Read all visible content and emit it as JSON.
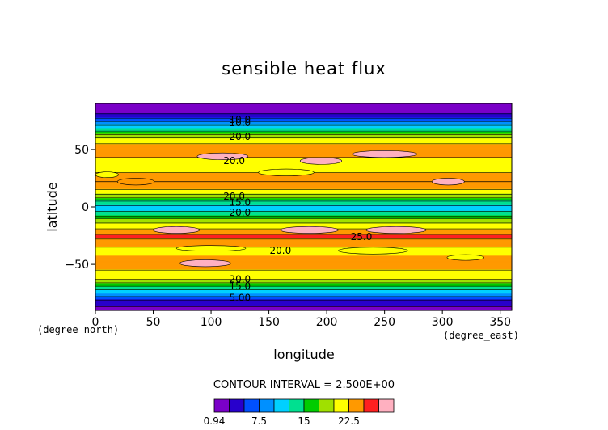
{
  "chart_data": {
    "type": "heatmap",
    "title": "sensible heat flux",
    "xlabel": "longitude",
    "ylabel": "latitude",
    "x_unit": "(degree_east)",
    "y_unit": "(degree_north)",
    "xlim": [
      0,
      360
    ],
    "ylim": [
      -90,
      90
    ],
    "x_ticks": [
      0,
      50,
      100,
      150,
      200,
      250,
      300,
      350
    ],
    "y_ticks": [
      50,
      0,
      -50
    ],
    "contour_interval_text": "CONTOUR INTERVAL = 2.500E+00",
    "colorbar": {
      "tick_labels": [
        "0.94",
        "7.5",
        "15",
        "22.5"
      ],
      "tick_values": [
        0.94,
        7.5,
        15,
        22.5
      ],
      "levels": [
        0.94,
        2.5,
        5,
        7.5,
        10,
        12.5,
        15,
        17.5,
        20,
        22.5,
        25,
        27.5
      ],
      "colors": [
        "#7a00c8",
        "#2800cc",
        "#0050ff",
        "#0090ff",
        "#00d0ff",
        "#00e090",
        "#00cc00",
        "#a0e000",
        "#ffff00",
        "#ff9900",
        "#ff2020",
        "#ffb0c0"
      ]
    },
    "zonal_profile": {
      "lat": [
        -90,
        -85,
        -80,
        -77,
        -74,
        -71,
        -68,
        -65,
        -62,
        -58,
        -54,
        -50,
        -46,
        -42,
        -38,
        -34,
        -30,
        -26,
        -22,
        -18,
        -14,
        -10,
        -6,
        -2,
        2,
        6,
        10,
        14,
        18,
        22,
        26,
        30,
        34,
        38,
        42,
        46,
        50,
        54,
        58,
        62,
        65,
        68,
        71,
        74,
        77,
        80,
        85,
        90
      ],
      "value": [
        0.94,
        3,
        5,
        8,
        10.5,
        13,
        15.5,
        18,
        20.5,
        22,
        22.5,
        23,
        23.5,
        22.5,
        21.5,
        22.5,
        23.5,
        25.5,
        24.5,
        22,
        20,
        17.5,
        13.5,
        12,
        12.5,
        15,
        19,
        21.5,
        23.5,
        25,
        24,
        22.5,
        21,
        20.5,
        22,
        23.5,
        24,
        23,
        21.5,
        19,
        16,
        13,
        10.5,
        8,
        5.5,
        3,
        1.5,
        0.94
      ]
    },
    "contour_labels": [
      "10.0",
      "20.0",
      "20.0",
      "20.0",
      "15.0",
      "20.0",
      "20.0",
      "25.0",
      "20.0",
      "15.0",
      "5.00",
      "10.0"
    ],
    "grid": false,
    "legend": "bottom colorbar"
  }
}
